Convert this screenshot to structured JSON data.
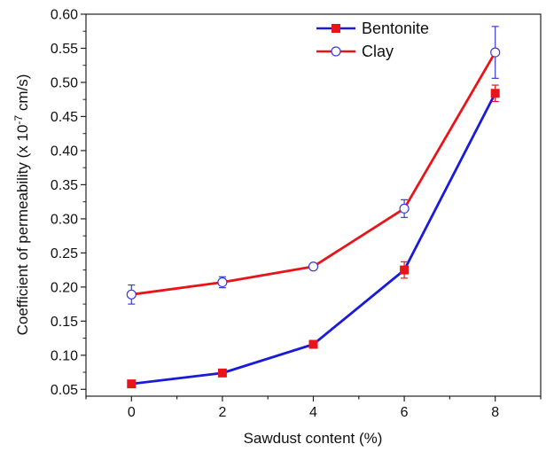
{
  "chart_data": {
    "type": "line",
    "xlabel": "Sawdust content (%)",
    "ylabel_prefix": "Coefficient of permeability (x 10",
    "ylabel_exp": "-7",
    "ylabel_suffix": " cm/s)",
    "x": [
      0,
      2,
      4,
      6,
      8
    ],
    "xlim": [
      -1,
      9
    ],
    "ylim": [
      0.04,
      0.6
    ],
    "x_ticks": [
      "0",
      "2",
      "4",
      "6",
      "8"
    ],
    "y_ticks": [
      "0.05",
      "0.10",
      "0.15",
      "0.20",
      "0.25",
      "0.30",
      "0.35",
      "0.40",
      "0.45",
      "0.50",
      "0.55",
      "0.60"
    ],
    "grid": false,
    "legend_position": "top-center",
    "series": [
      {
        "name": "Bentonite",
        "values": [
          0.058,
          0.074,
          0.116,
          0.225,
          0.484
        ],
        "errors": [
          0.002,
          0.002,
          0.002,
          0.012,
          0.012
        ],
        "line_color": "#1a1adb",
        "marker": "filled-square",
        "marker_color": "#e8141a"
      },
      {
        "name": "Clay",
        "values": [
          0.189,
          0.207,
          0.23,
          0.315,
          0.544
        ],
        "errors": [
          0.014,
          0.008,
          0.004,
          0.013,
          0.038
        ],
        "line_color": "#e8141a",
        "marker": "open-circle",
        "marker_color": "#3b3bd8"
      }
    ]
  }
}
